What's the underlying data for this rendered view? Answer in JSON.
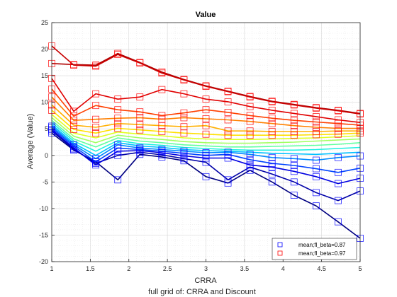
{
  "chart_data": {
    "type": "line",
    "title": "Value",
    "xlabel": "CRRA",
    "ylabel": "Average (Value)",
    "caption": "full grid of: CRRA and Discount",
    "xlim": [
      1,
      5
    ],
    "ylim": [
      -20,
      25
    ],
    "xticks": [
      1,
      1.5,
      2,
      2.5,
      3,
      3.5,
      4,
      4.5,
      5
    ],
    "yticks": [
      -20,
      -15,
      -10,
      -5,
      0,
      5,
      10,
      15,
      20,
      25
    ],
    "grid": true,
    "x": [
      1.0,
      1.2857,
      1.5714,
      1.8571,
      2.1429,
      2.4286,
      2.7143,
      3.0,
      3.2857,
      3.5714,
      3.8571,
      4.1429,
      4.4286,
      4.7143,
      5.0
    ],
    "legend_position": "bottom-right",
    "legend": [
      {
        "label": "mean;fl_beta=0.87",
        "color": "#0000ff"
      },
      {
        "label": "mean;fl_beta=0.97",
        "color": "#ff0000"
      }
    ],
    "series": [
      {
        "color": "#000080",
        "values": [
          4.2,
          1.0,
          -1.2,
          -4.6,
          0.2,
          -0.3,
          -1.0,
          -4.0,
          -5.2,
          -2.8,
          -5.0,
          -7.5,
          -9.5,
          -12.5,
          -15.6
        ],
        "marker": "blue"
      },
      {
        "color": "#0000a8",
        "values": [
          4.6,
          1.2,
          -1.5,
          0.0,
          0.6,
          0.1,
          -0.6,
          -1.3,
          -4.6,
          -2.2,
          -3.5,
          -5.0,
          -7.0,
          -8.5,
          -6.7
        ],
        "marker": "blue"
      },
      {
        "color": "#0000e0",
        "values": [
          4.9,
          1.4,
          -1.8,
          0.8,
          0.9,
          0.5,
          -0.1,
          -0.5,
          -0.5,
          -1.8,
          -2.2,
          -3.0,
          -4.0,
          -5.3,
          -4.3
        ],
        "marker": "blue"
      },
      {
        "color": "#0044ff",
        "values": [
          5.2,
          1.7,
          -1.2,
          1.4,
          1.1,
          0.8,
          0.4,
          0.0,
          0.2,
          -0.8,
          -1.5,
          -1.9,
          -2.5,
          -3.2,
          -2.4
        ],
        "marker": "blue"
      },
      {
        "color": "#0088ff",
        "values": [
          5.5,
          2.0,
          -0.6,
          2.0,
          1.4,
          1.1,
          0.8,
          0.5,
          0.6,
          0.2,
          -0.4,
          -0.6,
          -0.9,
          -0.4,
          -0.1
        ],
        "marker": "blue"
      },
      {
        "color": "#00c0ff",
        "values": [
          5.8,
          2.3,
          0.0,
          2.4,
          1.8,
          1.5,
          1.1,
          0.9,
          0.8,
          0.6,
          0.4,
          0.3,
          0.2,
          0.4,
          0.6
        ]
      },
      {
        "color": "#20f0e0",
        "values": [
          6.2,
          2.7,
          0.8,
          2.8,
          2.2,
          1.9,
          1.5,
          1.3,
          1.1,
          1.0,
          1.0,
          1.0,
          1.1,
          1.3,
          1.5
        ]
      },
      {
        "color": "#60ffa0",
        "values": [
          6.6,
          3.1,
          1.6,
          3.3,
          2.7,
          2.4,
          2.0,
          1.8,
          1.6,
          1.6,
          1.7,
          1.8,
          1.9,
          2.1,
          2.4
        ]
      },
      {
        "color": "#a0ff60",
        "values": [
          7.1,
          3.6,
          2.4,
          3.8,
          3.3,
          3.0,
          2.6,
          2.4,
          2.3,
          2.3,
          2.4,
          2.5,
          2.7,
          2.9,
          3.1
        ]
      },
      {
        "color": "#e0ff20",
        "values": [
          7.7,
          4.2,
          3.3,
          4.4,
          4.0,
          3.7,
          3.3,
          3.1,
          3.0,
          3.0,
          3.1,
          3.2,
          3.3,
          3.5,
          3.7
        ]
      },
      {
        "color": "#ffe000",
        "values": [
          8.5,
          4.9,
          4.2,
          5.1,
          4.8,
          4.5,
          4.2,
          4.0,
          3.8,
          3.8,
          3.8,
          3.8,
          3.9,
          4.0,
          4.2
        ],
        "marker": "red"
      },
      {
        "color": "#ffb000",
        "values": [
          9.5,
          5.7,
          5.3,
          6.0,
          5.8,
          5.6,
          5.4,
          5.6,
          4.6,
          4.6,
          4.5,
          4.5,
          4.5,
          4.6,
          4.6
        ],
        "marker": "red"
      },
      {
        "color": "#ff8000",
        "values": [
          11.0,
          6.6,
          6.8,
          7.0,
          7.1,
          6.8,
          7.1,
          6.9,
          6.7,
          6.4,
          6.0,
          5.6,
          5.3,
          5.1,
          5.1
        ],
        "marker": "red"
      },
      {
        "color": "#ff4000",
        "values": [
          12.5,
          7.4,
          9.4,
          8.6,
          8.2,
          7.5,
          8.0,
          8.6,
          8.1,
          7.5,
          7.0,
          6.6,
          6.3,
          6.0,
          5.7
        ],
        "marker": "red"
      },
      {
        "color": "#e00000",
        "values": [
          14.5,
          8.3,
          11.6,
          10.6,
          11.0,
          12.4,
          11.6,
          10.6,
          10.1,
          9.2,
          8.5,
          7.9,
          7.3,
          6.7,
          6.2
        ],
        "marker": "red"
      },
      {
        "color": "#b00000",
        "values": [
          17.3,
          17.1,
          17.0,
          19.2,
          17.5,
          15.7,
          14.3,
          13.1,
          12.1,
          11.1,
          10.2,
          9.6,
          9.0,
          8.5,
          7.9
        ],
        "marker": "red"
      },
      {
        "color": "#c80000",
        "values": [
          20.6,
          17.0,
          16.8,
          19.0,
          17.4,
          15.5,
          14.2,
          13.0,
          12.0,
          11.0,
          10.1,
          9.5,
          8.9,
          8.4,
          7.8
        ],
        "marker": "red"
      }
    ]
  }
}
